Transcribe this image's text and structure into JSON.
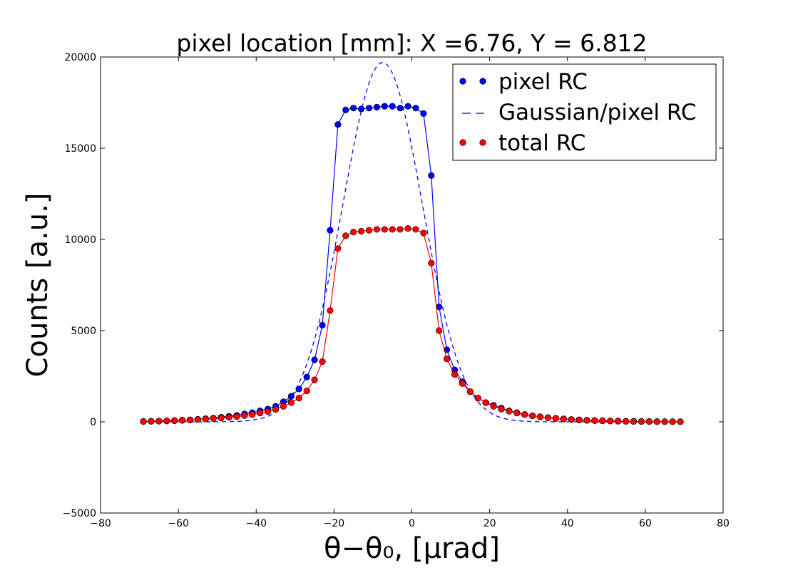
{
  "chart_data": {
    "type": "line",
    "title": "pixel location [mm]: X =6.76, Y = 6.812",
    "xlabel": "θ−θ₀, [μrad]",
    "ylabel": "Counts [a.u.]",
    "xlim": [
      -80,
      80
    ],
    "ylim": [
      -5000,
      20000
    ],
    "xticks": [
      -80,
      -60,
      -40,
      -20,
      0,
      20,
      40,
      60,
      80
    ],
    "xtick_labels": [
      "−80",
      "−60",
      "−40",
      "−20",
      "0",
      "20",
      "40",
      "60",
      "80"
    ],
    "yticks": [
      -5000,
      0,
      5000,
      10000,
      15000,
      20000
    ],
    "ytick_labels": [
      "−5000",
      "0",
      "5000",
      "10000",
      "15000",
      "20000"
    ],
    "grid": false,
    "legend_position": "top-right",
    "series": [
      {
        "name": "pixel RC",
        "color": "#0000ff",
        "style": "markers+line",
        "x": [
          -69,
          -67,
          -65,
          -63,
          -61,
          -59,
          -57,
          -55,
          -53,
          -51,
          -49,
          -47,
          -45,
          -43,
          -41,
          -39,
          -37,
          -35,
          -33,
          -31,
          -29,
          -27,
          -25,
          -23,
          -21,
          -19,
          -17,
          -15,
          -13,
          -11,
          -9,
          -7,
          -5,
          -3,
          -1,
          1,
          3,
          5,
          7,
          9,
          11,
          13,
          15,
          17,
          19,
          21,
          23,
          25,
          27,
          29,
          31,
          33,
          35,
          37,
          39,
          41,
          43,
          45,
          47,
          49,
          51,
          53,
          55,
          57,
          59,
          61,
          63,
          65,
          67,
          69
        ],
        "y": [
          20,
          30,
          40,
          50,
          70,
          90,
          110,
          140,
          170,
          200,
          250,
          300,
          350,
          430,
          500,
          600,
          700,
          850,
          1100,
          1400,
          1800,
          2450,
          3400,
          5300,
          10500,
          16300,
          17100,
          17200,
          17150,
          17200,
          17250,
          17300,
          17300,
          17200,
          17300,
          17200,
          16900,
          13500,
          6300,
          3950,
          2850,
          2200,
          1650,
          1300,
          1050,
          900,
          750,
          600,
          500,
          400,
          330,
          280,
          230,
          190,
          160,
          130,
          110,
          90,
          75,
          60,
          50,
          40,
          30,
          25,
          20,
          15,
          10,
          10,
          5,
          5
        ]
      },
      {
        "name": "Gaussian/pixel RC",
        "color": "#0000ff",
        "style": "dashed",
        "amplitude": 19700,
        "mean": -7.5,
        "sigma": 10.2
      },
      {
        "name": "total RC",
        "color": "#ff0000",
        "style": "markers+line",
        "x": [
          -69,
          -67,
          -65,
          -63,
          -61,
          -59,
          -57,
          -55,
          -53,
          -51,
          -49,
          -47,
          -45,
          -43,
          -41,
          -39,
          -37,
          -35,
          -33,
          -31,
          -29,
          -27,
          -25,
          -23,
          -21,
          -19,
          -17,
          -15,
          -13,
          -11,
          -9,
          -7,
          -5,
          -3,
          -1,
          1,
          3,
          5,
          7,
          9,
          11,
          13,
          15,
          17,
          19,
          21,
          23,
          25,
          27,
          29,
          31,
          33,
          35,
          37,
          39,
          41,
          43,
          45,
          47,
          49,
          51,
          53,
          55,
          57,
          59,
          61,
          63,
          65,
          67,
          69
        ],
        "y": [
          20,
          30,
          40,
          50,
          60,
          80,
          100,
          120,
          150,
          180,
          210,
          250,
          290,
          340,
          400,
          480,
          560,
          680,
          850,
          1050,
          1300,
          1700,
          2300,
          3300,
          6100,
          9500,
          10200,
          10400,
          10450,
          10500,
          10550,
          10550,
          10550,
          10550,
          10600,
          10550,
          10350,
          8700,
          5000,
          3450,
          2600,
          2100,
          1650,
          1300,
          1050,
          850,
          700,
          580,
          480,
          400,
          330,
          270,
          220,
          180,
          150,
          120,
          100,
          80,
          65,
          55,
          45,
          35,
          28,
          22,
          18,
          14,
          10,
          8,
          5,
          5
        ]
      }
    ]
  }
}
